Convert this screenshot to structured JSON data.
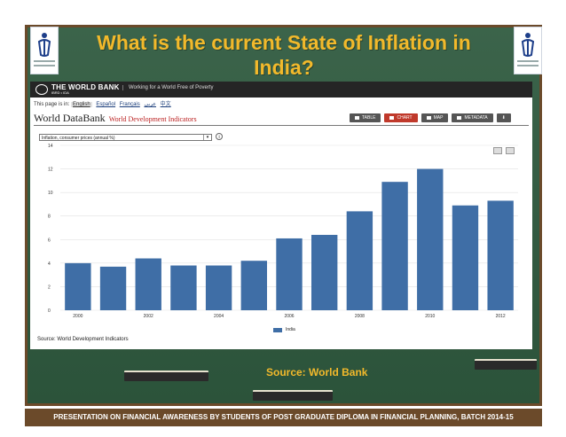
{
  "slide": {
    "title_line1": "What is the current State of Inflation in",
    "title_line2": "India?",
    "source": "Source: World Bank",
    "footer": "PRESENTATION ON FINANCIAL AWARENESS BY STUDENTS OF POST GRADUATE DIPLOMA IN FINANCIAL PLANNING, BATCH 2014-15"
  },
  "worldbank": {
    "name": "THE WORLD BANK",
    "sub": "IBRD • IDA",
    "tagline": "Working for a World Free of Poverty",
    "page_is_in": "This page is in:",
    "languages": [
      "English",
      "Español",
      "Français",
      "عربي",
      "中文"
    ],
    "db_title": "World DataBank",
    "db_subtitle": "World Development Indicators",
    "buttons": [
      "TABLE",
      "CHART",
      "MAP",
      "METADATA"
    ],
    "indicator": "Inflation, consumer prices (annual %)",
    "info_glyph": "i",
    "chart_source": "Source: World Development Indicators"
  },
  "icons": {
    "print": "print-icon",
    "download": "download-icon",
    "info": "info-icon"
  },
  "colors": {
    "bar": "#3f6ea6",
    "title": "#f2b92b",
    "board": "#2f5a3f",
    "active_button": "#c0392b"
  },
  "chart_data": {
    "type": "bar",
    "categories": [
      "2000",
      "2001",
      "2002",
      "2003",
      "2004",
      "2005",
      "2006",
      "2007",
      "2008",
      "2009",
      "2010",
      "2011",
      "2012"
    ],
    "x_tick_labels": [
      "2000",
      "2002",
      "2004",
      "2006",
      "2008",
      "2010",
      "2012"
    ],
    "series": [
      {
        "name": "India",
        "values": [
          4.0,
          3.7,
          4.4,
          3.8,
          3.8,
          4.2,
          6.1,
          6.4,
          8.4,
          10.9,
          12.0,
          8.9,
          9.3
        ]
      }
    ],
    "ylim": [
      0,
      14
    ],
    "yticks": [
      0,
      2,
      4,
      6,
      8,
      10,
      12,
      14
    ],
    "legend": "bottom-center",
    "grid": true
  }
}
